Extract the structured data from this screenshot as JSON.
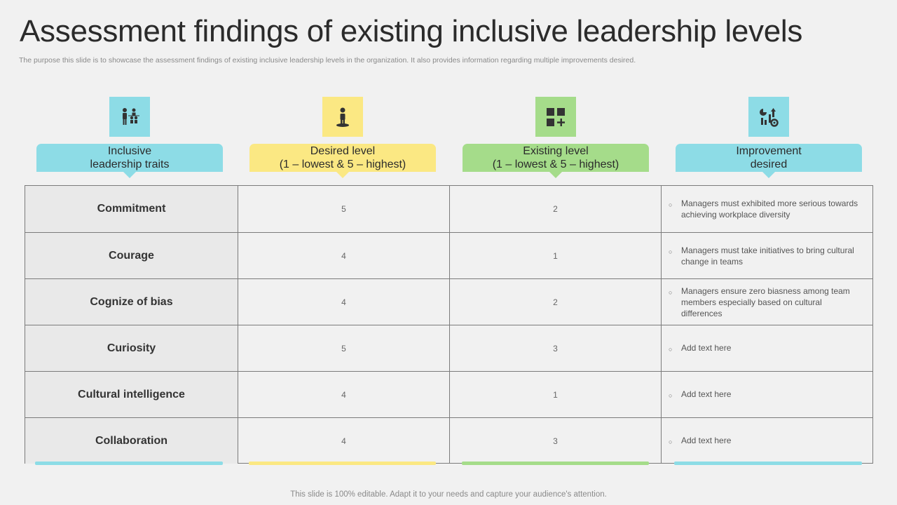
{
  "title": "Assessment findings of existing inclusive leadership levels",
  "subtitle": "The purpose this slide is to showcase the assessment findings of existing inclusive leadership levels in the organization. It also provides information regarding multiple improvements desired.",
  "columns": [
    {
      "label_line1": "Inclusive",
      "label_line2": "leadership traits",
      "icon": "people-chart-icon",
      "color": "#8ddce6"
    },
    {
      "label_line1": "Desired level",
      "label_line2": "(1 – lowest & 5 – highest)",
      "icon": "person-on-platform-icon",
      "color": "#fbe883"
    },
    {
      "label_line1": "Existing level",
      "label_line2": "(1 – lowest & 5 – highest)",
      "icon": "grid-plus-icon",
      "color": "#a5dc8a"
    },
    {
      "label_line1": "Improvement",
      "label_line2": "desired",
      "icon": "chart-gear-icon",
      "color": "#8ddce6"
    }
  ],
  "rows": [
    {
      "trait": "Commitment",
      "desired": "5",
      "existing": "2",
      "improvement": "Managers must exhibited more serious towards achieving workplace diversity"
    },
    {
      "trait": "Courage",
      "desired": "4",
      "existing": "1",
      "improvement": "Managers must take initiatives to bring cultural change in teams"
    },
    {
      "trait": "Cognize of bias",
      "desired": "4",
      "existing": "2",
      "improvement": "Managers ensure zero biasness among team members especially based on cultural differences"
    },
    {
      "trait": "Curiosity",
      "desired": "5",
      "existing": "3",
      "improvement": "Add text here"
    },
    {
      "trait": "Cultural intelligence",
      "desired": "4",
      "existing": "1",
      "improvement": "Add text here"
    },
    {
      "trait": "Collaboration",
      "desired": "4",
      "existing": "3",
      "improvement": "Add text here"
    }
  ],
  "bullet_symbol": "○",
  "footer": "This slide is 100% editable. Adapt it to your needs and capture your audience's attention."
}
